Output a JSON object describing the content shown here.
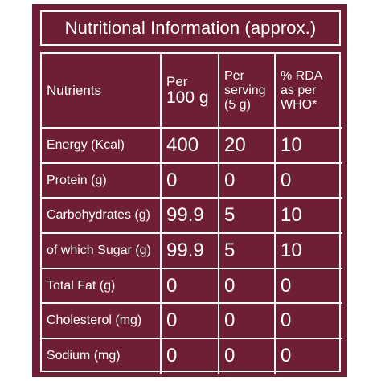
{
  "title": "Nutritional Information (approx.)",
  "headers": {
    "nutrients": "Nutrients",
    "per100_line1": "Per",
    "per100_line2": "100 g",
    "serving_line1": "Per",
    "serving_line2": "serving",
    "serving_line3": "(5 g)",
    "rda_line1": "% RDA",
    "rda_line2": "as per",
    "rda_line3": "WHO*"
  },
  "rows": [
    {
      "nutrient": "Energy (Kcal)",
      "per100": "400",
      "serving": "20",
      "rda": "10"
    },
    {
      "nutrient": "Protein (g)",
      "per100": "0",
      "serving": "0",
      "rda": "0"
    },
    {
      "nutrient": "Carbohydrates (g)",
      "per100": "99.9",
      "serving": "5",
      "rda": "10"
    },
    {
      "nutrient": "of which Sugar (g)",
      "per100": "99.9",
      "serving": "5",
      "rda": "10"
    },
    {
      "nutrient": "Total Fat (g)",
      "per100": "0",
      "serving": "0",
      "rda": "0"
    },
    {
      "nutrient": "Cholesterol (mg)",
      "per100": "0",
      "serving": "0",
      "rda": "0"
    },
    {
      "nutrient": "Sodium (mg)",
      "per100": "0",
      "serving": "0",
      "rda": "0"
    }
  ],
  "colors": {
    "panel": "#6e1f36",
    "text": "#ffffff"
  }
}
